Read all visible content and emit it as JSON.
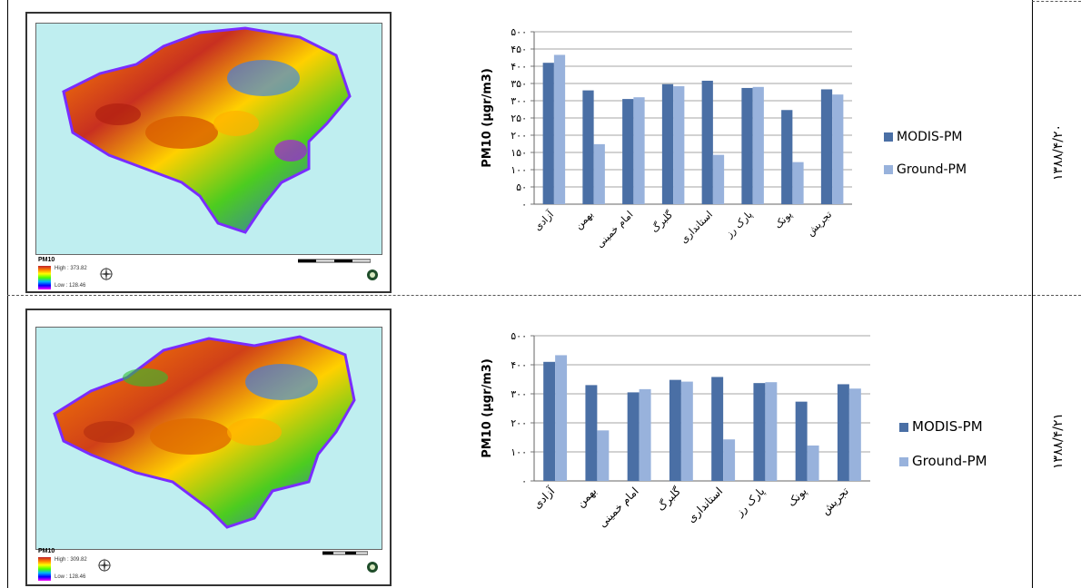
{
  "rows": [
    {
      "date_label": "۱۳۸۸/۴/۲۰",
      "map": {
        "legend_title": "PM10",
        "legend_high": "High : 373.82",
        "legend_low": "Low : 128.46"
      },
      "chart_data": {
        "type": "bar",
        "categories": [
          "آزادی",
          "بهمن",
          "امام خمینی",
          "گلبرگ",
          "استانداری",
          "پارک رز",
          "پونک",
          "تجریش"
        ],
        "series": [
          {
            "name": "MODIS-PM",
            "values": [
              410,
              330,
              305,
              348,
              358,
              337,
              273,
              333
            ],
            "color": "#4a6fa5"
          },
          {
            "name": "Ground-PM",
            "values": [
              433,
              174,
              310,
              342,
              143,
              340,
              122,
              318
            ],
            "color": "#98b2dc"
          }
        ],
        "ylabel": "PM10 (µgr/m3)",
        "ylim": [
          0,
          500
        ],
        "yticks": [
          {
            "value": 0,
            "label": "۰"
          },
          {
            "value": 50,
            "label": "۵۰"
          },
          {
            "value": 100,
            "label": "۱۰۰"
          },
          {
            "value": 150,
            "label": "۱۵۰"
          },
          {
            "value": 200,
            "label": "۲۰۰"
          },
          {
            "value": 250,
            "label": "۲۵۰"
          },
          {
            "value": 300,
            "label": "۳۰۰"
          },
          {
            "value": 350,
            "label": "۳۵۰"
          },
          {
            "value": 400,
            "label": "۴۰۰"
          },
          {
            "value": 450,
            "label": "۴۵۰"
          },
          {
            "value": 500,
            "label": "۵۰۰"
          }
        ],
        "grid": true,
        "legend": "right"
      }
    },
    {
      "date_label": "۱۳۸۸/۴/۲۱",
      "map": {
        "legend_title": "PM10",
        "legend_high": "High : 309.82",
        "legend_low": "Low : 128.46"
      },
      "chart_data": {
        "type": "bar",
        "categories": [
          "آزادی",
          "بهمن",
          "امام خمینی",
          "گلبرگ",
          "استانداری",
          "پارک رز",
          "پونک",
          "تجریش"
        ],
        "series": [
          {
            "name": "MODIS-PM",
            "values": [
              410,
              330,
              305,
              348,
              358,
              337,
              273,
              333
            ],
            "color": "#4a6fa5"
          },
          {
            "name": "Ground-PM",
            "values": [
              433,
              174,
              316,
              342,
              143,
              340,
              122,
              318
            ],
            "color": "#98b2dc"
          }
        ],
        "ylabel": "PM10 (µgr/m3)",
        "ylim": [
          0,
          500
        ],
        "yticks": [
          {
            "value": 0,
            "label": "۰"
          },
          {
            "value": 100,
            "label": "۱۰۰"
          },
          {
            "value": 200,
            "label": "۲۰۰"
          },
          {
            "value": 300,
            "label": "۳۰۰"
          },
          {
            "value": 400,
            "label": "۴۰۰"
          },
          {
            "value": 500,
            "label": "۵۰۰"
          }
        ],
        "grid": true,
        "legend": "right"
      }
    }
  ]
}
